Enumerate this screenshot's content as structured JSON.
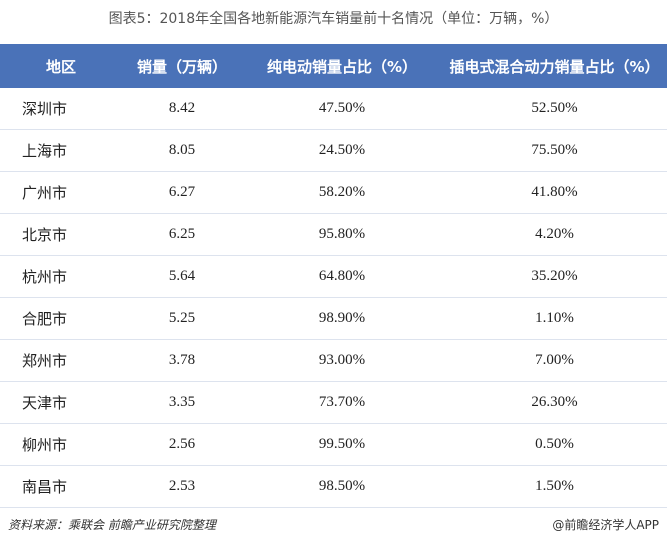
{
  "header": {
    "title": "图表5：2018年全国各地新能源汽车销量前十名情况（单位：万辆，%）"
  },
  "table": {
    "columns": [
      "地区",
      "销量（万辆）",
      "纯电动销量占比（%）",
      "插电式混合动力销量占比（%）"
    ],
    "rows": [
      [
        "深圳市",
        "8.42",
        "47.50%",
        "52.50%"
      ],
      [
        "上海市",
        "8.05",
        "24.50%",
        "75.50%"
      ],
      [
        "广州市",
        "6.27",
        "58.20%",
        "41.80%"
      ],
      [
        "北京市",
        "6.25",
        "95.80%",
        "4.20%"
      ],
      [
        "杭州市",
        "5.64",
        "64.80%",
        "35.20%"
      ],
      [
        "合肥市",
        "5.25",
        "98.90%",
        "1.10%"
      ],
      [
        "郑州市",
        "3.78",
        "93.00%",
        "7.00%"
      ],
      [
        "天津市",
        "3.35",
        "73.70%",
        "26.30%"
      ],
      [
        "柳州市",
        "2.56",
        "99.50%",
        "0.50%"
      ],
      [
        "南昌市",
        "2.53",
        "98.50%",
        "1.50%"
      ]
    ]
  },
  "footer": {
    "source": "资料来源：乘联会 前瞻产业研究院整理",
    "brand": "@前瞻经济学人APP"
  }
}
